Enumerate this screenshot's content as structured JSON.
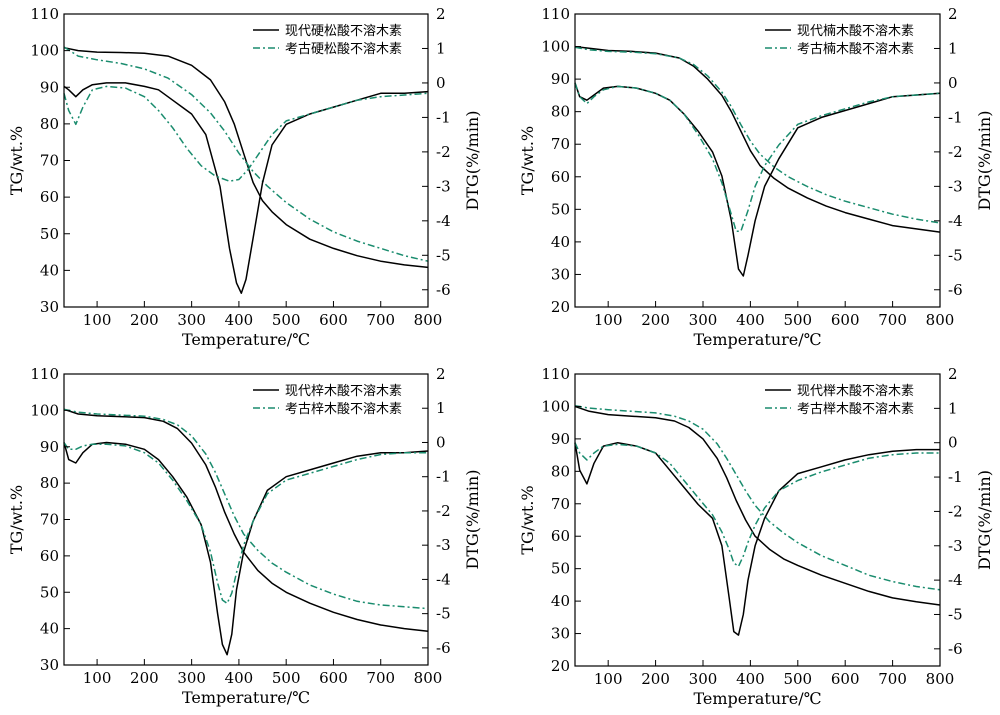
{
  "chart_data": [
    {
      "type": "line",
      "x_range": [
        30,
        800
      ],
      "xlabel": "Temperature/℃",
      "ylabel_left": "TG/wt.%",
      "ylabel_right": "DTG(%/min)",
      "ylim_left": [
        30,
        110
      ],
      "ylim_right": [
        -6.5,
        2
      ],
      "x_ticks": [
        100,
        200,
        300,
        400,
        500,
        600,
        700,
        800
      ],
      "y_ticks_left": [
        30,
        40,
        50,
        60,
        70,
        80,
        90,
        100,
        110
      ],
      "y_ticks_right": [
        -6,
        -5,
        -4,
        -3,
        -2,
        -1,
        0,
        1,
        2
      ],
      "legend_position": "top-right",
      "legend": [
        "现代硬松酸不溶木素",
        "考古硬松酸不溶木素"
      ],
      "series": [
        {
          "axis": "left",
          "style": "solid",
          "color": "#000000",
          "x": [
            30,
            60,
            100,
            150,
            200,
            250,
            300,
            340,
            370,
            390,
            410,
            430,
            450,
            470,
            500,
            550,
            600,
            650,
            700,
            750,
            800
          ],
          "y": [
            100.8,
            100.0,
            99.6,
            99.5,
            99.3,
            98.5,
            96.0,
            92.0,
            86.0,
            80.0,
            72.0,
            64.0,
            59.0,
            56.0,
            52.5,
            48.5,
            46.0,
            44.0,
            42.5,
            41.5,
            40.8
          ]
        },
        {
          "axis": "left",
          "style": "dashdot",
          "color": "#1a8c6e",
          "x": [
            30,
            60,
            100,
            150,
            200,
            250,
            300,
            340,
            370,
            400,
            430,
            460,
            500,
            550,
            600,
            650,
            700,
            750,
            800
          ],
          "y": [
            101.0,
            98.5,
            97.5,
            96.5,
            95.0,
            92.5,
            88.0,
            83.0,
            78.0,
            72.0,
            67.0,
            63.0,
            58.5,
            54.0,
            50.5,
            48.0,
            46.0,
            44.0,
            42.5
          ]
        },
        {
          "axis": "right",
          "style": "solid",
          "color": "#000000",
          "x": [
            30,
            40,
            55,
            70,
            90,
            120,
            160,
            200,
            230,
            260,
            280,
            300,
            330,
            360,
            380,
            395,
            405,
            415,
            430,
            450,
            470,
            500,
            550,
            600,
            650,
            700,
            750,
            800
          ],
          "y": [
            -0.1,
            -0.2,
            -0.4,
            -0.2,
            -0.05,
            0.0,
            0.0,
            -0.1,
            -0.2,
            -0.5,
            -0.7,
            -0.9,
            -1.5,
            -3.0,
            -4.8,
            -5.8,
            -6.1,
            -5.7,
            -4.5,
            -2.9,
            -1.8,
            -1.2,
            -0.9,
            -0.7,
            -0.5,
            -0.3,
            -0.3,
            -0.25
          ]
        },
        {
          "axis": "right",
          "style": "dashdot",
          "color": "#1a8c6e",
          "x": [
            30,
            40,
            55,
            70,
            90,
            120,
            160,
            200,
            230,
            260,
            290,
            320,
            350,
            380,
            400,
            420,
            440,
            470,
            500,
            550,
            600,
            650,
            700,
            750,
            800
          ],
          "y": [
            -0.3,
            -0.8,
            -1.2,
            -0.7,
            -0.2,
            -0.1,
            -0.15,
            -0.4,
            -0.8,
            -1.3,
            -1.9,
            -2.4,
            -2.7,
            -2.85,
            -2.8,
            -2.5,
            -2.1,
            -1.5,
            -1.1,
            -0.9,
            -0.7,
            -0.5,
            -0.4,
            -0.35,
            -0.3
          ]
        }
      ]
    },
    {
      "type": "line",
      "x_range": [
        30,
        800
      ],
      "xlabel": "Temperature/℃",
      "ylabel_left": "TG/wt.%",
      "ylabel_right": "DTG(%/min)",
      "ylim_left": [
        20,
        110
      ],
      "ylim_right": [
        -6.5,
        2
      ],
      "x_ticks": [
        100,
        200,
        300,
        400,
        500,
        600,
        700,
        800
      ],
      "y_ticks_left": [
        20,
        30,
        40,
        50,
        60,
        70,
        80,
        90,
        100,
        110
      ],
      "y_ticks_right": [
        -6,
        -5,
        -4,
        -3,
        -2,
        -1,
        0,
        1,
        2
      ],
      "legend_position": "top-right",
      "legend": [
        "现代楠木酸不溶木素",
        "考古楠木酸不溶木素"
      ],
      "series": [
        {
          "axis": "left",
          "style": "solid",
          "color": "#000000",
          "x": [
            30,
            60,
            100,
            150,
            200,
            250,
            280,
            310,
            340,
            360,
            380,
            400,
            420,
            450,
            480,
            520,
            560,
            600,
            650,
            700,
            750,
            800
          ],
          "y": [
            100.0,
            99.5,
            98.8,
            98.5,
            98.0,
            96.5,
            94.0,
            90.0,
            85.0,
            80.0,
            74.0,
            68.0,
            63.5,
            59.5,
            56.5,
            53.5,
            51.0,
            49.0,
            47.0,
            45.0,
            44.0,
            43.0
          ]
        },
        {
          "axis": "left",
          "style": "dashdot",
          "color": "#1a8c6e",
          "x": [
            30,
            60,
            100,
            150,
            200,
            250,
            280,
            310,
            340,
            360,
            380,
            400,
            420,
            450,
            480,
            520,
            560,
            600,
            650,
            700,
            750,
            800
          ],
          "y": [
            99.8,
            99.0,
            98.5,
            98.3,
            97.8,
            96.5,
            94.5,
            91.0,
            86.0,
            81.5,
            76.0,
            71.0,
            67.0,
            63.0,
            60.0,
            57.0,
            54.5,
            52.5,
            50.5,
            48.5,
            47.0,
            45.8
          ]
        },
        {
          "axis": "right",
          "style": "solid",
          "color": "#000000",
          "x": [
            30,
            40,
            55,
            70,
            90,
            120,
            160,
            200,
            230,
            260,
            290,
            320,
            340,
            360,
            375,
            385,
            395,
            410,
            430,
            460,
            500,
            550,
            600,
            650,
            700,
            750,
            800
          ],
          "y": [
            0.0,
            -0.4,
            -0.5,
            -0.35,
            -0.15,
            -0.1,
            -0.15,
            -0.3,
            -0.5,
            -0.9,
            -1.4,
            -2.0,
            -2.7,
            -4.0,
            -5.4,
            -5.6,
            -5.0,
            -4.0,
            -3.0,
            -2.2,
            -1.3,
            -1.0,
            -0.8,
            -0.6,
            -0.4,
            -0.35,
            -0.3
          ]
        },
        {
          "axis": "right",
          "style": "dashdot",
          "color": "#1a8c6e",
          "x": [
            30,
            40,
            55,
            70,
            90,
            120,
            160,
            200,
            230,
            260,
            290,
            320,
            340,
            355,
            370,
            380,
            395,
            410,
            430,
            460,
            500,
            550,
            600,
            650,
            700,
            750,
            800
          ],
          "y": [
            0.0,
            -0.4,
            -0.6,
            -0.4,
            -0.2,
            -0.1,
            -0.15,
            -0.3,
            -0.5,
            -0.9,
            -1.5,
            -2.2,
            -2.9,
            -3.6,
            -4.3,
            -4.3,
            -3.7,
            -3.0,
            -2.4,
            -1.8,
            -1.2,
            -0.95,
            -0.75,
            -0.55,
            -0.4,
            -0.35,
            -0.3
          ]
        }
      ]
    },
    {
      "type": "line",
      "x_range": [
        30,
        800
      ],
      "xlabel": "Temperature/℃",
      "ylabel_left": "TG/wt.%",
      "ylabel_right": "DTG(%/min)",
      "ylim_left": [
        30,
        110
      ],
      "ylim_right": [
        -6.5,
        2
      ],
      "x_ticks": [
        100,
        200,
        300,
        400,
        500,
        600,
        700,
        800
      ],
      "y_ticks_left": [
        30,
        40,
        50,
        60,
        70,
        80,
        90,
        100,
        110
      ],
      "y_ticks_right": [
        -6,
        -5,
        -4,
        -3,
        -2,
        -1,
        0,
        1,
        2
      ],
      "legend_position": "top-right",
      "legend": [
        "现代梓木酸不溶木素",
        "考古梓木酸不溶木素"
      ],
      "series": [
        {
          "axis": "left",
          "style": "solid",
          "color": "#000000",
          "x": [
            30,
            60,
            100,
            150,
            200,
            240,
            270,
            300,
            330,
            350,
            370,
            390,
            410,
            440,
            470,
            500,
            550,
            600,
            650,
            700,
            750,
            800
          ],
          "y": [
            100.3,
            99.0,
            98.5,
            98.3,
            98.0,
            97.0,
            95.0,
            91.0,
            85.0,
            79.0,
            72.0,
            66.0,
            61.0,
            56.0,
            52.5,
            50.0,
            47.0,
            44.5,
            42.5,
            41.0,
            40.0,
            39.3
          ]
        },
        {
          "axis": "left",
          "style": "dashdot",
          "color": "#1a8c6e",
          "x": [
            30,
            60,
            100,
            150,
            200,
            240,
            270,
            300,
            330,
            350,
            370,
            390,
            410,
            440,
            470,
            500,
            550,
            600,
            650,
            700,
            750,
            800
          ],
          "y": [
            100.3,
            99.5,
            99.0,
            98.7,
            98.4,
            97.5,
            96.0,
            93.0,
            88.0,
            83.0,
            77.0,
            71.0,
            66.0,
            61.5,
            58.0,
            55.5,
            52.0,
            49.5,
            47.5,
            46.5,
            46.0,
            45.5
          ]
        },
        {
          "axis": "right",
          "style": "solid",
          "color": "#000000",
          "x": [
            30,
            40,
            55,
            70,
            90,
            120,
            160,
            200,
            230,
            260,
            290,
            320,
            340,
            355,
            365,
            375,
            385,
            395,
            410,
            430,
            460,
            500,
            550,
            600,
            650,
            700,
            750,
            800
          ],
          "y": [
            0.0,
            -0.5,
            -0.6,
            -0.3,
            -0.05,
            0.0,
            -0.05,
            -0.2,
            -0.5,
            -1.0,
            -1.6,
            -2.4,
            -3.5,
            -5.0,
            -5.9,
            -6.2,
            -5.6,
            -4.3,
            -3.2,
            -2.3,
            -1.4,
            -1.0,
            -0.8,
            -0.6,
            -0.4,
            -0.3,
            -0.3,
            -0.25
          ]
        },
        {
          "axis": "right",
          "style": "dashdot",
          "color": "#1a8c6e",
          "x": [
            30,
            40,
            55,
            70,
            90,
            120,
            160,
            200,
            230,
            260,
            290,
            320,
            340,
            355,
            365,
            375,
            385,
            395,
            410,
            430,
            460,
            500,
            550,
            600,
            650,
            700,
            750,
            800
          ],
          "y": [
            0.0,
            -0.2,
            -0.2,
            -0.1,
            -0.05,
            -0.05,
            -0.1,
            -0.3,
            -0.6,
            -1.1,
            -1.7,
            -2.4,
            -3.2,
            -4.1,
            -4.6,
            -4.7,
            -4.4,
            -3.8,
            -3.0,
            -2.3,
            -1.5,
            -1.1,
            -0.9,
            -0.7,
            -0.5,
            -0.35,
            -0.3,
            -0.3
          ]
        }
      ]
    },
    {
      "type": "line",
      "x_range": [
        30,
        800
      ],
      "xlabel": "Temperature/℃",
      "ylabel_left": "TG/wt.%",
      "ylabel_right": "DTG(%/min)",
      "ylim_left": [
        20,
        110
      ],
      "ylim_right": [
        -6.5,
        2
      ],
      "x_ticks": [
        100,
        200,
        300,
        400,
        500,
        600,
        700,
        800
      ],
      "y_ticks_left": [
        20,
        30,
        40,
        50,
        60,
        70,
        80,
        90,
        100,
        110
      ],
      "y_ticks_right": [
        -6,
        -5,
        -4,
        -3,
        -2,
        -1,
        0,
        1,
        2
      ],
      "legend_position": "top-right",
      "legend": [
        "现代榉木酸不溶木素",
        "考古榉木酸不溶木素"
      ],
      "series": [
        {
          "axis": "left",
          "style": "solid",
          "color": "#000000",
          "x": [
            30,
            60,
            100,
            150,
            200,
            240,
            270,
            300,
            330,
            350,
            370,
            390,
            410,
            440,
            470,
            500,
            550,
            600,
            650,
            700,
            750,
            800
          ],
          "y": [
            100.0,
            98.5,
            97.5,
            97.0,
            96.5,
            95.5,
            93.5,
            90.0,
            84.0,
            78.0,
            71.0,
            65.0,
            60.0,
            56.0,
            53.0,
            51.0,
            48.0,
            45.5,
            43.0,
            41.0,
            39.8,
            38.8
          ]
        },
        {
          "axis": "left",
          "style": "dashdot",
          "color": "#1a8c6e",
          "x": [
            30,
            60,
            100,
            150,
            200,
            240,
            270,
            300,
            330,
            350,
            370,
            390,
            410,
            440,
            470,
            500,
            550,
            600,
            650,
            700,
            750,
            800
          ],
          "y": [
            100.2,
            99.5,
            99.0,
            98.5,
            98.0,
            97.0,
            95.5,
            93.0,
            88.5,
            84.0,
            79.0,
            74.0,
            69.5,
            64.5,
            61.0,
            58.0,
            54.0,
            51.0,
            48.0,
            46.0,
            44.5,
            43.5
          ]
        },
        {
          "axis": "right",
          "style": "solid",
          "color": "#000000",
          "x": [
            30,
            40,
            55,
            70,
            90,
            120,
            160,
            200,
            230,
            260,
            290,
            320,
            340,
            355,
            365,
            375,
            385,
            395,
            410,
            430,
            460,
            500,
            550,
            600,
            650,
            700,
            750,
            800
          ],
          "y": [
            0.0,
            -0.8,
            -1.2,
            -0.6,
            -0.1,
            0.0,
            -0.1,
            -0.3,
            -0.8,
            -1.3,
            -1.8,
            -2.2,
            -3.0,
            -4.5,
            -5.5,
            -5.6,
            -5.0,
            -4.0,
            -3.0,
            -2.2,
            -1.4,
            -0.9,
            -0.7,
            -0.5,
            -0.35,
            -0.25,
            -0.2,
            -0.2
          ]
        },
        {
          "axis": "right",
          "style": "dashdot",
          "color": "#1a8c6e",
          "x": [
            30,
            40,
            55,
            70,
            90,
            120,
            160,
            200,
            230,
            260,
            290,
            320,
            340,
            355,
            365,
            375,
            385,
            395,
            410,
            430,
            460,
            500,
            550,
            600,
            650,
            700,
            750,
            800
          ],
          "y": [
            0.0,
            -0.3,
            -0.5,
            -0.3,
            -0.1,
            -0.05,
            -0.1,
            -0.3,
            -0.6,
            -1.1,
            -1.6,
            -2.1,
            -2.6,
            -3.1,
            -3.5,
            -3.6,
            -3.3,
            -2.9,
            -2.4,
            -1.9,
            -1.4,
            -1.1,
            -0.85,
            -0.65,
            -0.45,
            -0.35,
            -0.3,
            -0.3
          ]
        }
      ]
    }
  ]
}
